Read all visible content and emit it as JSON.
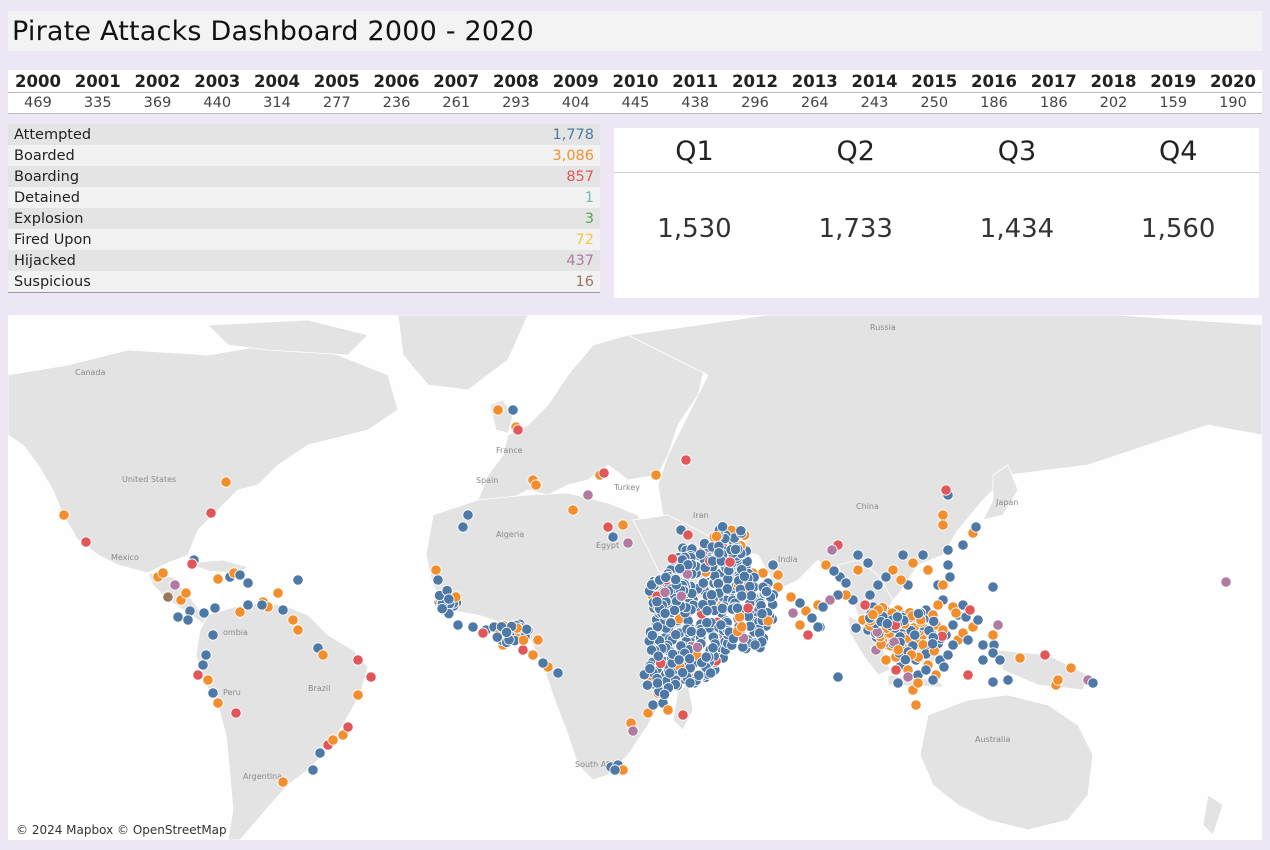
{
  "title": "Pirate Attacks Dashboard 2000 - 2020",
  "years": [
    {
      "year": "2000",
      "count": "469"
    },
    {
      "year": "2001",
      "count": "335"
    },
    {
      "year": "2002",
      "count": "369"
    },
    {
      "year": "2003",
      "count": "440"
    },
    {
      "year": "2004",
      "count": "314"
    },
    {
      "year": "2005",
      "count": "277"
    },
    {
      "year": "2006",
      "count": "236"
    },
    {
      "year": "2007",
      "count": "261"
    },
    {
      "year": "2008",
      "count": "293"
    },
    {
      "year": "2009",
      "count": "404"
    },
    {
      "year": "2010",
      "count": "445"
    },
    {
      "year": "2011",
      "count": "438"
    },
    {
      "year": "2012",
      "count": "296"
    },
    {
      "year": "2013",
      "count": "264"
    },
    {
      "year": "2014",
      "count": "243"
    },
    {
      "year": "2015",
      "count": "250"
    },
    {
      "year": "2016",
      "count": "186"
    },
    {
      "year": "2017",
      "count": "186"
    },
    {
      "year": "2018",
      "count": "202"
    },
    {
      "year": "2019",
      "count": "159"
    },
    {
      "year": "2020",
      "count": "190"
    }
  ],
  "attack_types": [
    {
      "label": "Attempted",
      "value": "1,778",
      "color": "#4e79a7"
    },
    {
      "label": "Boarded",
      "value": "3,086",
      "color": "#f28e2b"
    },
    {
      "label": "Boarding",
      "value": "857",
      "color": "#e15759"
    },
    {
      "label": "Detained",
      "value": "1",
      "color": "#76b7b2"
    },
    {
      "label": "Explosion",
      "value": "3",
      "color": "#59a14f"
    },
    {
      "label": "Fired Upon",
      "value": "72",
      "color": "#edc948"
    },
    {
      "label": "Hijacked",
      "value": "437",
      "color": "#b07aa1"
    },
    {
      "label": "Suspicious",
      "value": "16",
      "color": "#9c755f"
    }
  ],
  "quarters": [
    {
      "label": "Q1",
      "value": "1,530"
    },
    {
      "label": "Q2",
      "value": "1,733"
    },
    {
      "label": "Q3",
      "value": "1,434"
    },
    {
      "label": "Q4",
      "value": "1,560"
    }
  ],
  "map": {
    "labels": {
      "russia": "Russia",
      "canada": "Canada",
      "united_states": "United States",
      "mexico": "Mexico",
      "colombia": "ombia",
      "peru": "Peru",
      "brazil": "Brazil",
      "argentina": "Argentina",
      "france": "France",
      "spain": "Spain",
      "algeria": "Algeria",
      "egypt": "Egypt",
      "turkey": "Turkey",
      "iran": "Iran",
      "india": "India",
      "china": "China",
      "japan": "Japan",
      "south_africa": "South Africa",
      "australia": "Australia"
    },
    "attribution": "© 2024 Mapbox © OpenStreetMap"
  }
}
